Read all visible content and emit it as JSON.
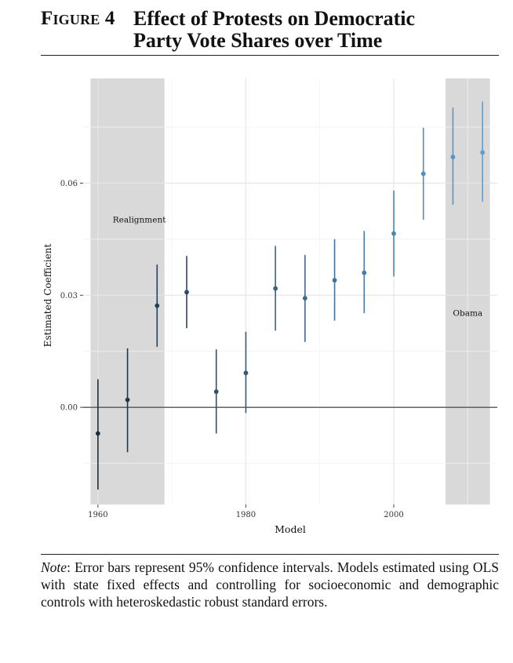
{
  "figure": {
    "label": "Figure 4",
    "title_line1": "Effect of Protests on Democratic",
    "title_line2": "Party Vote Shares over Time"
  },
  "note": {
    "label": "Note",
    "text": ": Error bars represent 95% confidence intervals. Models estimated using OLS with state fixed effects and controlling for socioeconomic and demographic controls with heteroskedastic robust standard errors."
  },
  "chart_data": {
    "type": "scatter",
    "title": "",
    "xlabel": "Model",
    "ylabel": "Estimated Coefficient",
    "xlim": [
      1958,
      2014
    ],
    "ylim": [
      -0.026,
      0.088
    ],
    "x_ticks": [
      1960,
      1980,
      2000
    ],
    "x_tick_labels": [
      "1960",
      "1980",
      "2000"
    ],
    "y_ticks": [
      0.0,
      0.03,
      0.06
    ],
    "y_tick_labels": [
      "0.00",
      "0.03",
      "0.06"
    ],
    "grid": true,
    "reference_line_y": 0,
    "shaded_regions": [
      {
        "label": "Realignment",
        "x_start": 1959,
        "x_end": 1969
      },
      {
        "label": "Obama",
        "x_start": 2007,
        "x_end": 2013
      }
    ],
    "points": [
      {
        "x": 1960,
        "y": -0.007,
        "lower": -0.022,
        "upper": 0.0075
      },
      {
        "x": 1964,
        "y": 0.002,
        "lower": -0.012,
        "upper": 0.0158
      },
      {
        "x": 1968,
        "y": 0.0272,
        "lower": 0.0162,
        "upper": 0.0382
      },
      {
        "x": 1972,
        "y": 0.0308,
        "lower": 0.0212,
        "upper": 0.0405
      },
      {
        "x": 1976,
        "y": 0.0042,
        "lower": -0.007,
        "upper": 0.0155
      },
      {
        "x": 1980,
        "y": 0.0092,
        "lower": -0.0015,
        "upper": 0.0202
      },
      {
        "x": 1984,
        "y": 0.0318,
        "lower": 0.0205,
        "upper": 0.0432
      },
      {
        "x": 1988,
        "y": 0.0292,
        "lower": 0.0175,
        "upper": 0.0408
      },
      {
        "x": 1992,
        "y": 0.034,
        "lower": 0.0232,
        "upper": 0.045
      },
      {
        "x": 1996,
        "y": 0.036,
        "lower": 0.0252,
        "upper": 0.0472
      },
      {
        "x": 2000,
        "y": 0.0465,
        "lower": 0.035,
        "upper": 0.058
      },
      {
        "x": 2004,
        "y": 0.0625,
        "lower": 0.0502,
        "upper": 0.0748
      },
      {
        "x": 2008,
        "y": 0.067,
        "lower": 0.0542,
        "upper": 0.0802
      },
      {
        "x": 2012,
        "y": 0.0682,
        "lower": 0.055,
        "upper": 0.0818
      }
    ],
    "colors": {
      "dark": "#1c2e3e",
      "light": "#5b9ed4",
      "shade": "#d9d9d9",
      "grid": "#ececec",
      "zero_line": "#555555"
    }
  }
}
